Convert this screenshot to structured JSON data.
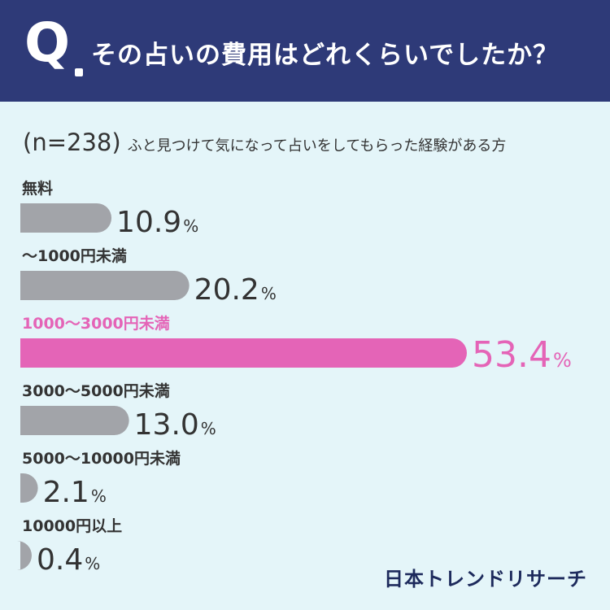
{
  "header": {
    "q_mark": "Q",
    "question": "その占いの費用はどれくらいでしたか？"
  },
  "sample": {
    "n_label": "(n=238)",
    "description": "ふと見つけて気になって占いをしてもらった経験がある方"
  },
  "chart_data": {
    "type": "bar",
    "orientation": "horizontal",
    "categories": [
      "無料",
      "〜1000円未満",
      "1000〜3000円未満",
      "3000〜5000円未満",
      "5000〜10000円未満",
      "10000円以上"
    ],
    "values": [
      10.9,
      20.2,
      53.4,
      13.0,
      2.1,
      0.4
    ],
    "value_labels": [
      "10.9",
      "20.2",
      "53.4",
      "13.0",
      "2.1",
      "0.4"
    ],
    "unit": "%",
    "highlight_index": 2,
    "colors": {
      "default": "#a2a4a9",
      "highlight": "#e464b7",
      "label_default": "#333333"
    }
  },
  "logo": {
    "text": "日本トレンドリサーチ"
  }
}
